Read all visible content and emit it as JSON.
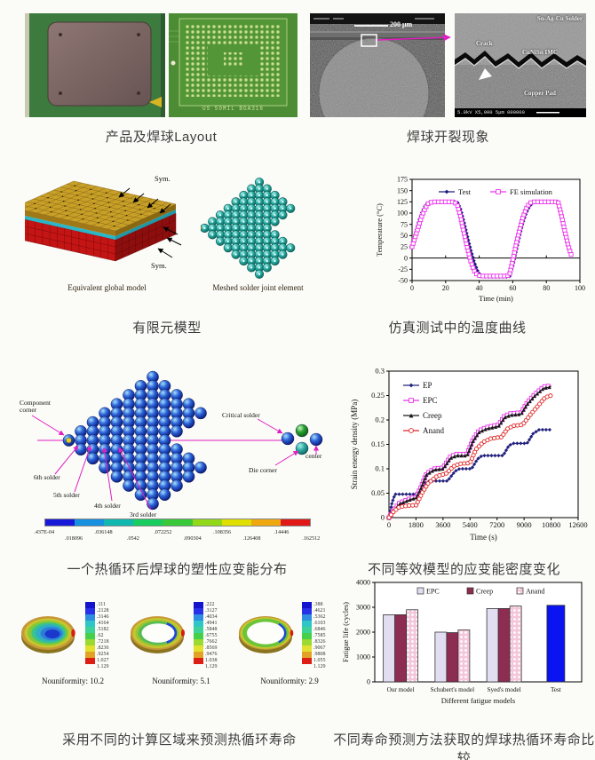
{
  "page": {
    "background": "#fbfbf8",
    "accent_magenta": "#e020c0",
    "caption_color": "#3d3d3d"
  },
  "captions": {
    "row1_left": "产品及焊球Layout",
    "row1_right": "焊球开裂现象",
    "row2_left": "有限元模型",
    "row2_right": "仿真测试中的温度曲线",
    "row3_left": "一个热循环后焊球的塑性应变能分布",
    "row3_right": "不同等效模型的应变能密度变化",
    "row4_left": "采用不同的计算区域来预测热循环寿命",
    "row4_right": "不同寿命预测方法获取的焊球热循环寿命比较"
  },
  "figures": {
    "product": {
      "bga_text": "US 50MIL BGA316"
    },
    "sem": {
      "scale_label": "200 μm",
      "solder_label": "Sn-Ag-Cu Solder",
      "crack_label": "Crack",
      "imc_label": "CuNiSn IMC",
      "pad_label": "Copper Pad",
      "footer": "5.0kV X5,000  5μm 000000"
    },
    "fem": {
      "left_label": "Equivalent global model",
      "right_label": "Meshed solder joint element",
      "sym": "Sym."
    },
    "strain_distribution": {
      "labels": {
        "component_corner": "Component corner",
        "critical": "Critical solder",
        "die_corner": "Die corner",
        "center": "center",
        "s6": "6th solder",
        "s5": "5th solder",
        "s4": "4th solder",
        "s3": "3rd solder"
      },
      "colorbar_values": [
        ".437E-04",
        ".018096",
        ".036148",
        ".0542",
        ".072252",
        ".090304",
        ".108356",
        ".126408",
        ".14446",
        ".162512"
      ],
      "colorbar_colors": [
        "#1818d8",
        "#1890e0",
        "#10b8b0",
        "#18cc60",
        "#38c838",
        "#90d818",
        "#e0e000",
        "#f0a810",
        "#e01818"
      ]
    },
    "nonuniformity": {
      "legend_colors": [
        "#1414cc",
        "#2830e8",
        "#2e8ee0",
        "#2ec6c6",
        "#3ed29a",
        "#46d04a",
        "#9ada32",
        "#e2e22e",
        "#e2a226",
        "#dc1e14"
      ],
      "panels": [
        {
          "label": "Nouniformity: 10.2",
          "legend": [
            ".111",
            ".2128",
            ".3146",
            ".4164",
            ".5182",
            ".62",
            ".7218",
            ".8236",
            ".9254",
            "1.027",
            "1.129"
          ]
        },
        {
          "label": "Nouniformity: 5.1",
          "legend": [
            ".222",
            ".3127",
            ".4034",
            ".4941",
            ".5848",
            ".6755",
            ".7662",
            ".8569",
            ".9476",
            "1.038",
            "1.129"
          ]
        },
        {
          "label": "Nouniformity: 2.9",
          "legend": [
            ".388",
            ".4621",
            ".5362",
            ".6103",
            ".6846",
            ".7585",
            ".8326",
            ".9067",
            ".9808",
            "1.055",
            "1.129"
          ]
        }
      ]
    }
  },
  "chart_data": [
    {
      "type": "line",
      "title": "",
      "xlabel": "Time (min)",
      "ylabel": "Temperature (°C)",
      "xlim": [
        0,
        100
      ],
      "ylim": [
        -50,
        175
      ],
      "xticks": [
        0,
        20,
        40,
        60,
        80,
        100
      ],
      "yticks": [
        -50,
        -25,
        0,
        25,
        50,
        75,
        100,
        125,
        150,
        175
      ],
      "zero_line": true,
      "legend_position": "top-inside",
      "series": [
        {
          "name": "Test",
          "color": "#1a1a7a",
          "marker": "diamond",
          "x": [
            0,
            2,
            4,
            6,
            8,
            10,
            13,
            16,
            19,
            22,
            25,
            27,
            29,
            31,
            33,
            35,
            37,
            39,
            41,
            44,
            47,
            50,
            53,
            56,
            58,
            60,
            62,
            64,
            66,
            68,
            70,
            72,
            75,
            78,
            81,
            84,
            87,
            89,
            91,
            93,
            95
          ],
          "y": [
            25,
            55,
            82,
            103,
            118,
            125,
            125,
            125,
            125,
            125,
            125,
            125,
            108,
            80,
            48,
            18,
            -8,
            -28,
            -40,
            -42,
            -42,
            -42,
            -42,
            -42,
            -42,
            -18,
            15,
            48,
            78,
            100,
            115,
            123,
            125,
            125,
            125,
            125,
            125,
            100,
            65,
            32,
            10
          ]
        },
        {
          "name": "FE simulation",
          "color": "#ee30ee",
          "marker": "square-open",
          "x": [
            0,
            2,
            4,
            6,
            8,
            10,
            13,
            16,
            19,
            22,
            25,
            27,
            29,
            31,
            33,
            35,
            37,
            39,
            41,
            44,
            47,
            50,
            53,
            56,
            58,
            60,
            62,
            64,
            66,
            68,
            70,
            72,
            75,
            78,
            81,
            84,
            87,
            89,
            91,
            93,
            95
          ],
          "y": [
            25,
            48,
            72,
            95,
            112,
            123,
            125,
            125,
            125,
            125,
            125,
            118,
            90,
            55,
            22,
            -8,
            -28,
            -38,
            -40,
            -40,
            -40,
            -40,
            -40,
            -40,
            -38,
            -5,
            30,
            62,
            90,
            110,
            122,
            125,
            125,
            125,
            125,
            125,
            125,
            95,
            60,
            28,
            5
          ]
        }
      ]
    },
    {
      "type": "line",
      "title": "",
      "xlabel": "Time (s)",
      "ylabel": "Strain energy density (MPa)",
      "xlim": [
        0,
        12600
      ],
      "ylim": [
        0,
        0.3
      ],
      "xticks": [
        0,
        1800,
        3600,
        5400,
        7200,
        9000,
        10800,
        12600
      ],
      "yticks": [
        0,
        0.05,
        0.1,
        0.15,
        0.2,
        0.25,
        0.3
      ],
      "zero_line": false,
      "legend_position": "upper-left-inside",
      "series": [
        {
          "name": "EP",
          "color": "#22227e",
          "marker": "diamond",
          "x": [
            0,
            200,
            400,
            1800,
            2300,
            2700,
            3900,
            4400,
            4700,
            5500,
            5900,
            6200,
            7600,
            8000,
            8300,
            9200,
            9600,
            10000,
            10800
          ],
          "y": [
            0,
            0.03,
            0.048,
            0.048,
            0.068,
            0.075,
            0.075,
            0.095,
            0.1,
            0.1,
            0.12,
            0.127,
            0.127,
            0.148,
            0.152,
            0.152,
            0.172,
            0.18,
            0.18
          ]
        },
        {
          "name": "EPC",
          "color": "#e832e8",
          "marker": "square-open",
          "x": [
            0,
            300,
            700,
            1500,
            1800,
            2100,
            2500,
            3000,
            3600,
            4100,
            4500,
            5200,
            5600,
            6000,
            6500,
            7300,
            7700,
            8100,
            8800,
            9200,
            9700,
            10300,
            10800
          ],
          "y": [
            0,
            0.015,
            0.03,
            0.04,
            0.042,
            0.06,
            0.09,
            0.1,
            0.102,
            0.125,
            0.13,
            0.13,
            0.16,
            0.178,
            0.185,
            0.19,
            0.208,
            0.213,
            0.215,
            0.235,
            0.252,
            0.268,
            0.27
          ]
        },
        {
          "name": "Creep",
          "color": "#181818",
          "marker": "triangle",
          "x": [
            0,
            300,
            700,
            1500,
            1800,
            2100,
            2500,
            3000,
            3600,
            4100,
            4500,
            5200,
            5600,
            6000,
            6500,
            7300,
            7700,
            8100,
            8800,
            9200,
            9700,
            10300,
            10800
          ],
          "y": [
            0,
            0.014,
            0.028,
            0.038,
            0.04,
            0.058,
            0.088,
            0.098,
            0.1,
            0.122,
            0.127,
            0.127,
            0.157,
            0.175,
            0.182,
            0.187,
            0.205,
            0.21,
            0.212,
            0.232,
            0.249,
            0.265,
            0.268
          ]
        },
        {
          "name": "Anand",
          "color": "#e02424",
          "marker": "circle-open",
          "x": [
            0,
            300,
            700,
            1400,
            1800,
            2200,
            2600,
            3200,
            3800,
            4300,
            4700,
            5400,
            5800,
            6300,
            6800,
            7500,
            7900,
            8300,
            8900,
            9400,
            9900,
            10400,
            10800
          ],
          "y": [
            0,
            0.012,
            0.022,
            0.025,
            0.025,
            0.05,
            0.07,
            0.085,
            0.09,
            0.105,
            0.11,
            0.112,
            0.14,
            0.155,
            0.162,
            0.165,
            0.182,
            0.188,
            0.19,
            0.21,
            0.228,
            0.246,
            0.25
          ]
        }
      ]
    },
    {
      "type": "bar",
      "title": "",
      "xlabel": "Different fatigue models",
      "ylabel": "Fatigue life (cycles)",
      "ylim": [
        0,
        4000
      ],
      "yticks": [
        0,
        1000,
        2000,
        3000,
        4000
      ],
      "categories": [
        "Our model",
        "Schubert's model",
        "Syed's model",
        "Test"
      ],
      "series": [
        {
          "name": "EPC",
          "fill": "#e2def2",
          "in_legend": true,
          "values": [
            2700,
            2000,
            2950,
            null
          ]
        },
        {
          "name": "Creep",
          "fill": "#8e2d52",
          "in_legend": true,
          "values": [
            2700,
            1980,
            2950,
            null
          ]
        },
        {
          "name": "Anand",
          "fill": "pattern:pink-dots",
          "base": "#f4c6da",
          "in_legend": true,
          "values": [
            2900,
            2090,
            3050,
            null
          ]
        },
        {
          "name": "Test",
          "fill": "#0a14f0",
          "in_legend": false,
          "values": [
            null,
            null,
            null,
            3080
          ]
        }
      ]
    }
  ]
}
